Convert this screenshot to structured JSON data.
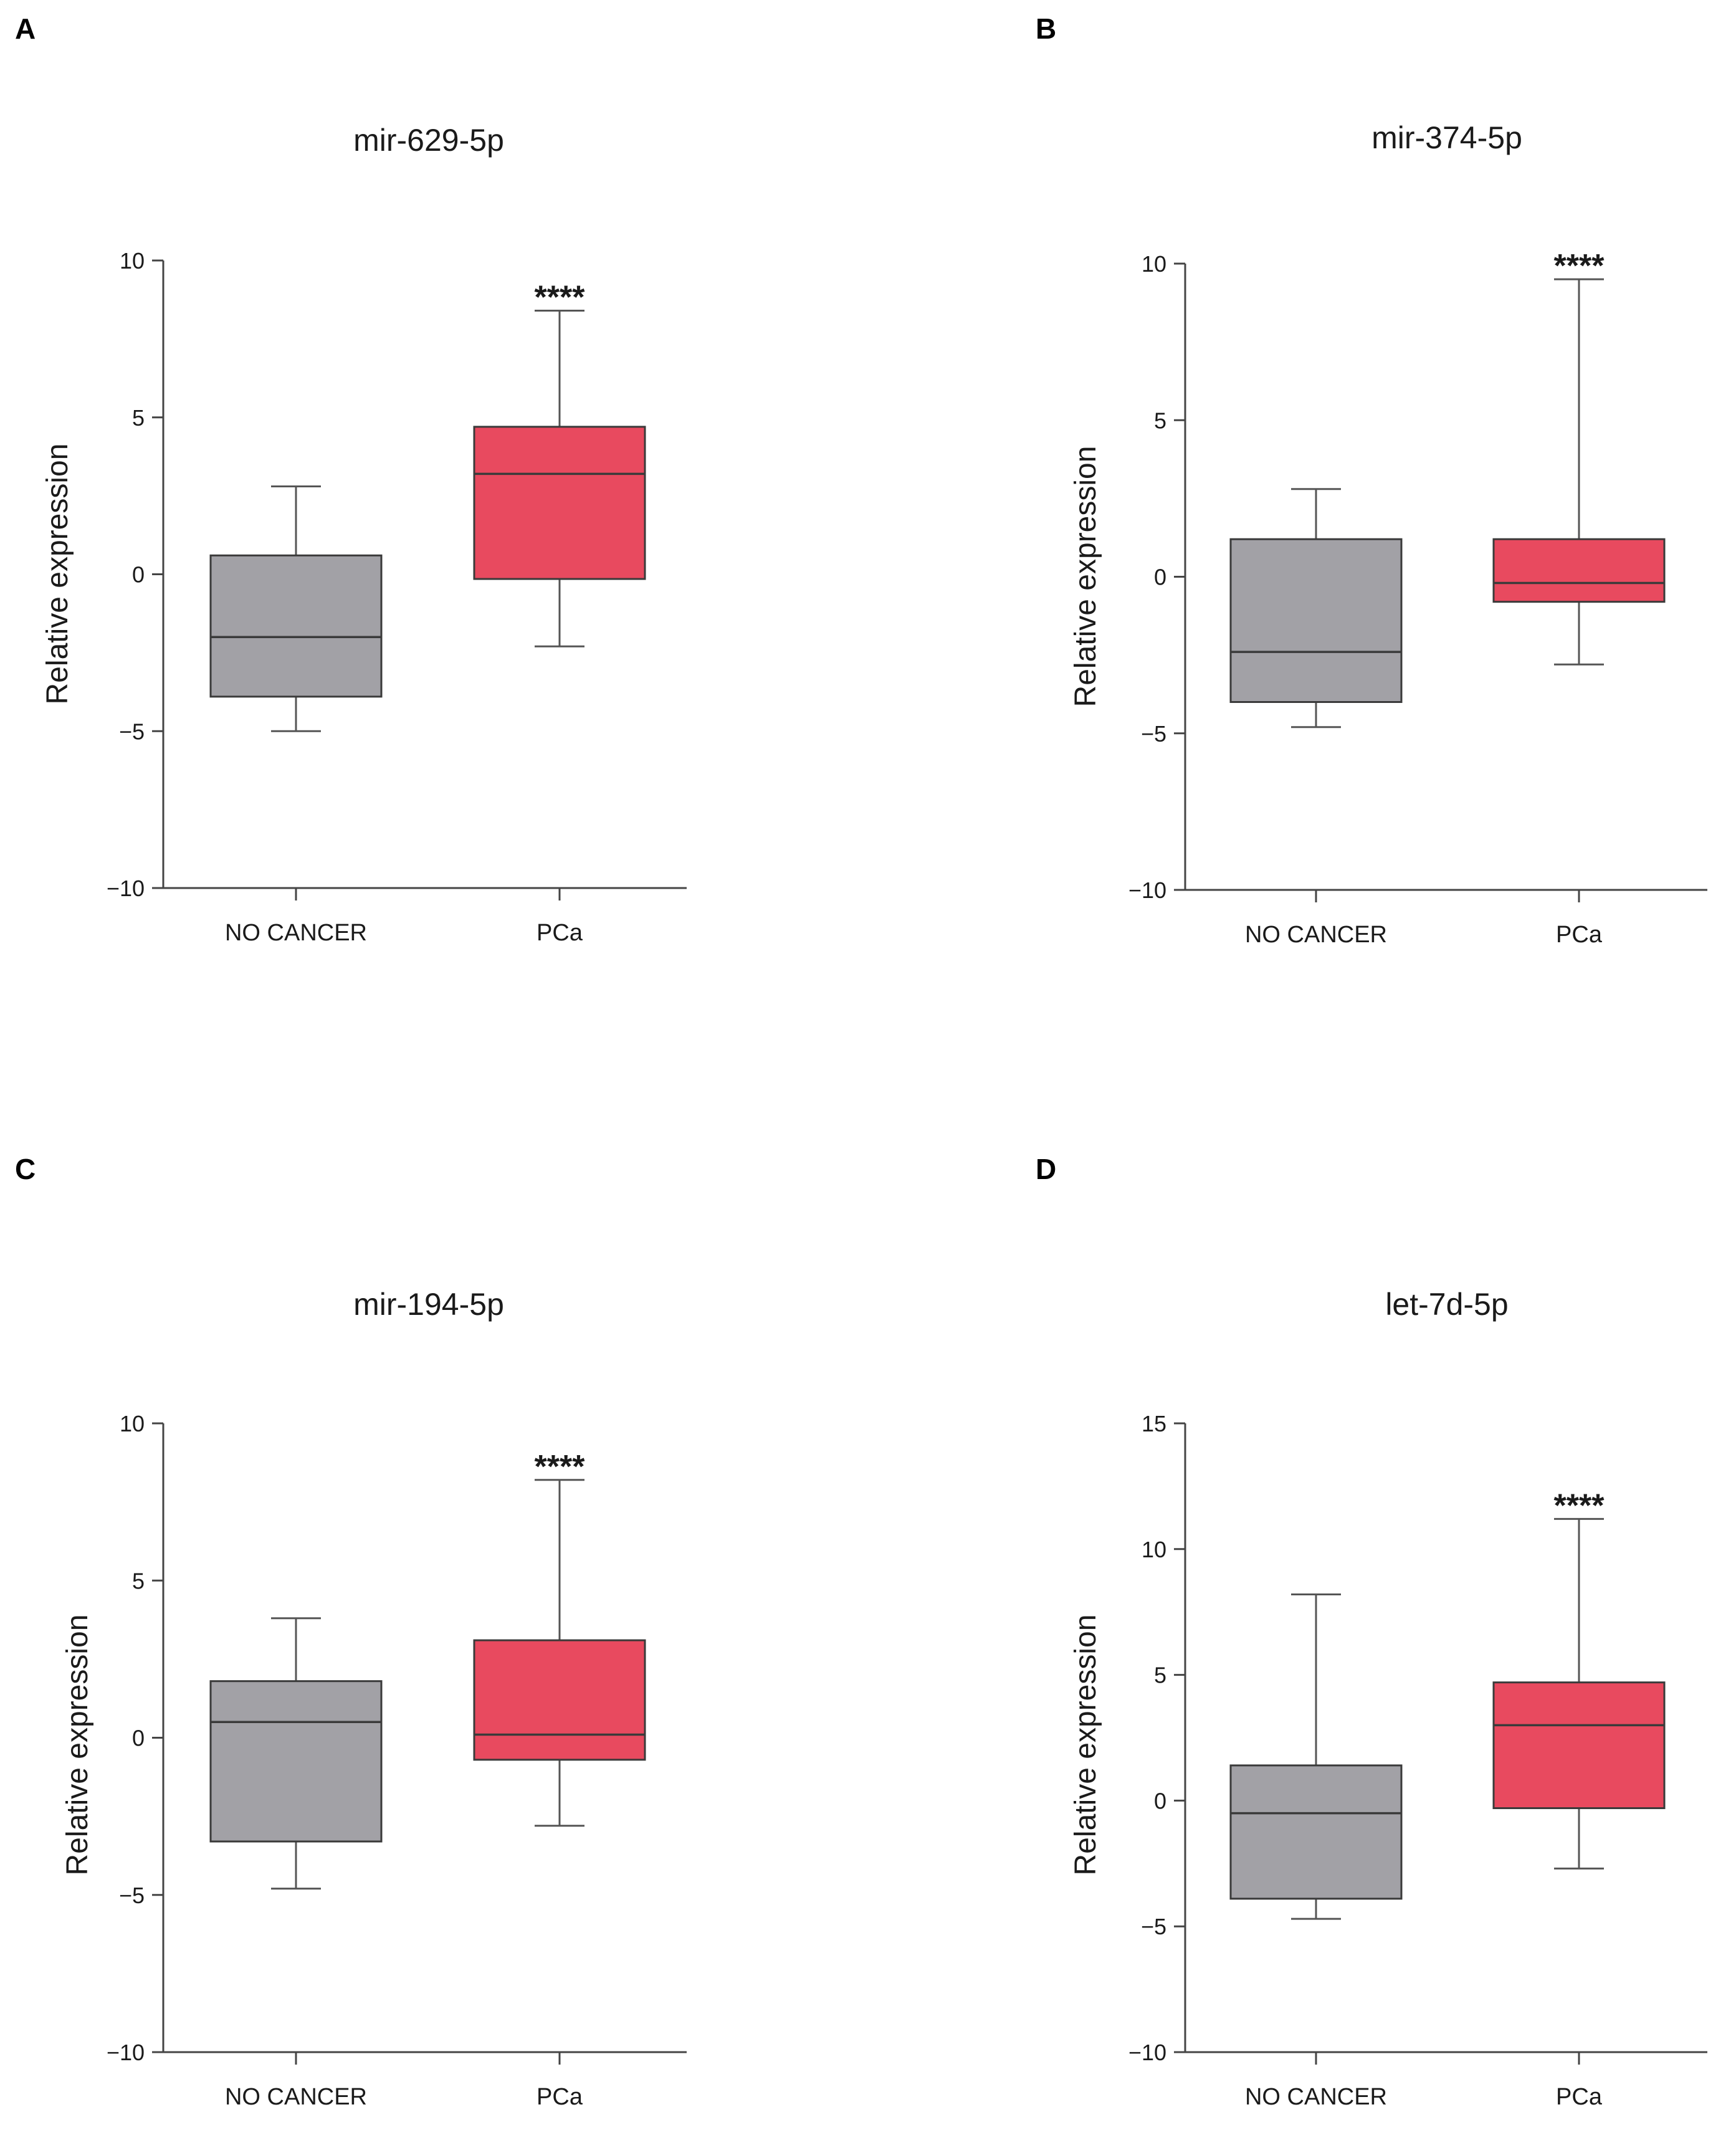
{
  "chart_data": [
    {
      "type": "box",
      "panel": "A",
      "title": "mir-629-5p",
      "ylabel": "Relative expression",
      "xlabel": "",
      "ylim": [
        -10,
        10
      ],
      "yticks": [
        10,
        5,
        0,
        -5,
        -10
      ],
      "ytick_labels": [
        "10",
        "5",
        "0",
        "−5",
        "−10"
      ],
      "categories": [
        "NO CANCER",
        "PCa"
      ],
      "annotation": "****",
      "boxes": [
        {
          "category": "NO CANCER",
          "whisker_low": -5.0,
          "q1": -3.9,
          "median": -2.0,
          "q3": 0.6,
          "whisker_high": 2.8,
          "color": "#a2a1a6"
        },
        {
          "category": "PCa",
          "whisker_low": -2.3,
          "q1": -0.15,
          "median": 3.2,
          "q3": 4.7,
          "whisker_high": 8.4,
          "color": "#e84a5f"
        }
      ]
    },
    {
      "type": "box",
      "panel": "B",
      "title": "mir-374-5p",
      "ylabel": "Relative expression",
      "xlabel": "",
      "ylim": [
        -10,
        10
      ],
      "yticks": [
        10,
        5,
        0,
        -5,
        -10
      ],
      "ytick_labels": [
        "10",
        "5",
        "0",
        "−5",
        "−10"
      ],
      "categories": [
        "NO CANCER",
        "PCa"
      ],
      "annotation": "****",
      "boxes": [
        {
          "category": "NO CANCER",
          "whisker_low": -4.8,
          "q1": -4.0,
          "median": -2.4,
          "q3": 1.2,
          "whisker_high": 2.8,
          "color": "#a2a1a6"
        },
        {
          "category": "PCa",
          "whisker_low": -2.8,
          "q1": -0.8,
          "median": -0.2,
          "q3": 1.2,
          "whisker_high": 9.5,
          "color": "#e84a5f"
        }
      ]
    },
    {
      "type": "box",
      "panel": "C",
      "title": "mir-194-5p",
      "ylabel": "Relative expression",
      "xlabel": "",
      "ylim": [
        -10,
        10
      ],
      "yticks": [
        10,
        5,
        0,
        -5,
        -10
      ],
      "ytick_labels": [
        "10",
        "5",
        "0",
        "−5",
        "−10"
      ],
      "categories": [
        "NO CANCER",
        "PCa"
      ],
      "annotation": "****",
      "boxes": [
        {
          "category": "NO CANCER",
          "whisker_low": -4.8,
          "q1": -3.3,
          "median": 0.5,
          "q3": 1.8,
          "whisker_high": 3.8,
          "color": "#a2a1a6"
        },
        {
          "category": "PCa",
          "whisker_low": -2.8,
          "q1": -0.7,
          "median": 0.1,
          "q3": 3.1,
          "whisker_high": 8.2,
          "color": "#e84a5f"
        }
      ]
    },
    {
      "type": "box",
      "panel": "D",
      "title": "let-7d-5p",
      "ylabel": "Relative expression",
      "xlabel": "",
      "ylim": [
        -10,
        15
      ],
      "yticks": [
        15,
        10,
        5,
        0,
        -5,
        -10
      ],
      "ytick_labels": [
        "15",
        "10",
        "5",
        "0",
        "−5",
        "−10"
      ],
      "categories": [
        "NO CANCER",
        "PCa"
      ],
      "annotation": "****",
      "boxes": [
        {
          "category": "NO CANCER",
          "whisker_low": -4.7,
          "q1": -3.9,
          "median": -0.5,
          "q3": 1.4,
          "whisker_high": 8.2,
          "color": "#a2a1a6"
        },
        {
          "category": "PCa",
          "whisker_low": -2.7,
          "q1": -0.3,
          "median": 3.0,
          "q3": 4.7,
          "whisker_high": 11.2,
          "color": "#e84a5f"
        }
      ]
    }
  ]
}
